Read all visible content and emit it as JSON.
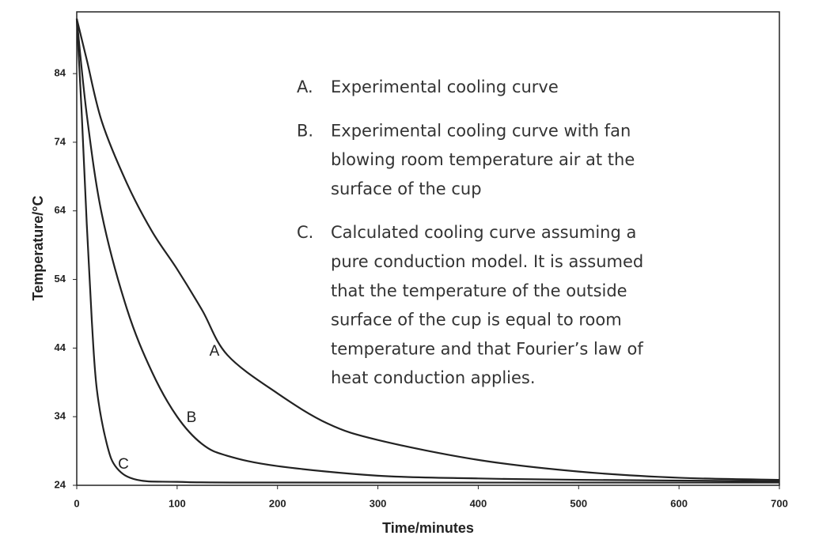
{
  "chart_data": {
    "type": "line",
    "x_label": "Time/minutes",
    "y_label": "Temperature/°C",
    "xlim": [
      0,
      700
    ],
    "ylim": [
      24,
      93
    ],
    "xticks": [
      0,
      100,
      200,
      300,
      400,
      500,
      600,
      700
    ],
    "yticks": [
      24,
      34,
      44,
      54,
      64,
      74,
      84
    ],
    "series": [
      {
        "name": "A",
        "color": "#222222",
        "x": [
          0,
          10,
          25,
          50,
          75,
          100,
          125,
          150,
          200,
          250,
          300,
          400,
          500,
          600,
          700
        ],
        "values": [
          92,
          86,
          77,
          68,
          61,
          55.5,
          49.5,
          43,
          37.4,
          33,
          30.6,
          27.7,
          26,
          25.1,
          24.8
        ]
      },
      {
        "name": "B",
        "color": "#222222",
        "x": [
          0,
          10,
          25,
          50,
          75,
          100,
          125,
          150,
          200,
          300,
          400,
          500,
          700
        ],
        "values": [
          92,
          78,
          63.5,
          49.7,
          40.5,
          34,
          30,
          28.3,
          26.8,
          25.4,
          25,
          24.8,
          24.6
        ]
      },
      {
        "name": "C",
        "color": "#222222",
        "x": [
          0,
          5,
          10,
          15,
          20,
          30,
          40,
          60,
          100,
          200,
          700
        ],
        "values": [
          92,
          78,
          62,
          48,
          38,
          30,
          26.5,
          24.8,
          24.5,
          24.4,
          24.4
        ]
      }
    ],
    "notes": [
      {
        "marker": "A.",
        "lines": [
          "Experimental cooling curve"
        ]
      },
      {
        "marker": "B.",
        "lines": [
          "Experimental cooling curve with fan",
          "blowing room temperature air at the",
          "surface of the cup"
        ]
      },
      {
        "marker": "C.",
        "lines": [
          "Calculated cooling curve assuming a",
          "pure conduction model. It is assumed",
          "that the temperature of the outside",
          "surface of the cup is equal to room",
          "temperature and that Fourier’s law of",
          "heat conduction applies."
        ]
      }
    ]
  }
}
